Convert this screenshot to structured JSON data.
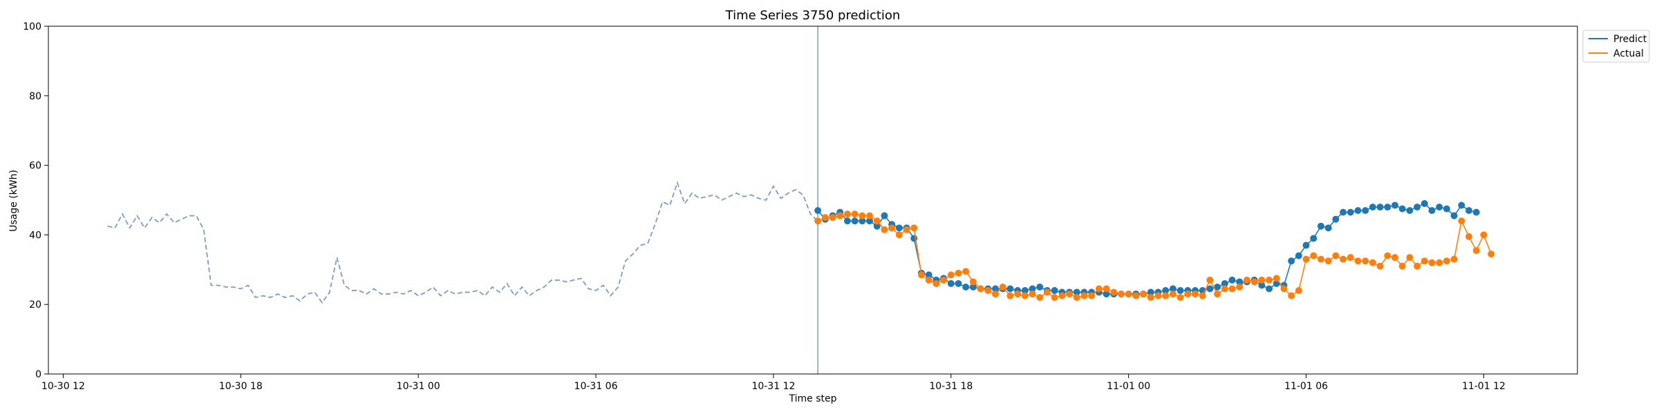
{
  "chart_data": {
    "type": "line",
    "title": "Time Series 3750 prediction",
    "xlabel": "Time step",
    "ylabel": "Usage (kWh)",
    "ylim": [
      0,
      100
    ],
    "xlim": [
      "2023-10-30 11:30",
      "2023-11-01 15:10"
    ],
    "yticks": [
      0,
      20,
      40,
      60,
      80,
      100
    ],
    "xticks": [
      {
        "t": "2023-10-30 12:00",
        "label": "10-30 12"
      },
      {
        "t": "2023-10-30 18:00",
        "label": "10-30 18"
      },
      {
        "t": "2023-10-31 00:00",
        "label": "10-31 00"
      },
      {
        "t": "2023-10-31 06:00",
        "label": "10-31 06"
      },
      {
        "t": "2023-10-31 12:00",
        "label": "10-31 12"
      },
      {
        "t": "2023-10-31 18:00",
        "label": "10-31 18"
      },
      {
        "t": "2023-11-01 00:00",
        "label": "11-01 00"
      },
      {
        "t": "2023-11-01 06:00",
        "label": "11-01 06"
      },
      {
        "t": "2023-11-01 12:00",
        "label": "11-01 12"
      }
    ],
    "legend": {
      "location": "upper-right-outside",
      "entries": [
        "Predict",
        "Actual"
      ]
    },
    "colors": {
      "history": "#7b9bc8",
      "predict": "#1f77b4",
      "actual": "#ff7f0e",
      "divider": "#7b9bc8"
    },
    "divider_x": "2023-10-31 13:30",
    "history": {
      "start": "2023-10-30 13:30",
      "step_minutes": 15,
      "style": "dashed",
      "values": [
        42.5,
        42,
        46,
        42,
        45.5,
        42,
        45,
        43.5,
        46,
        43.5,
        44.5,
        45.5,
        45.5,
        41.5,
        25.5,
        25.5,
        25,
        25,
        24.5,
        25.5,
        22,
        22.5,
        22,
        23,
        22,
        22.5,
        21,
        23,
        23.5,
        20.5,
        23.5,
        33.5,
        25.5,
        24,
        24,
        23,
        24.5,
        23,
        23,
        23.5,
        23,
        24,
        22.5,
        23.5,
        25,
        22.5,
        24,
        23,
        23.5,
        23.5,
        24,
        22.5,
        25,
        23.5,
        26,
        22.5,
        25,
        22.5,
        24,
        25,
        27,
        27,
        26.5,
        27,
        27.5,
        24.5,
        24,
        25.5,
        22.5,
        25,
        32.5,
        34.5,
        37,
        37.5,
        43,
        49.5,
        48.5,
        55,
        49,
        52,
        50.5,
        51,
        51.5,
        50,
        51,
        52,
        51,
        51.5,
        50.5,
        50,
        54,
        50.5,
        52,
        53,
        51.5,
        46,
        44
      ]
    },
    "series": [
      {
        "name": "Predict",
        "start": "2023-10-31 13:30",
        "step_minutes": 15,
        "values": [
          47,
          44.5,
          45.5,
          46.5,
          44,
          44,
          44,
          44,
          42.5,
          45.5,
          43,
          42,
          42,
          39,
          29,
          28.5,
          27,
          27.5,
          26,
          26,
          25,
          25,
          24.5,
          24.5,
          24.5,
          24.5,
          24.5,
          24,
          24,
          24.5,
          25,
          24,
          24,
          23.5,
          23.5,
          23.5,
          23.5,
          23.5,
          23.5,
          23,
          23,
          23,
          23,
          23,
          23,
          23.5,
          23.5,
          24,
          24.5,
          24,
          24,
          24,
          24,
          24.5,
          25,
          26,
          27,
          26.5,
          26.5,
          27,
          25.5,
          24.5,
          26,
          25.5,
          32.5,
          34,
          37,
          39,
          42.5,
          42,
          44.5,
          46.5,
          46.5,
          47,
          47,
          48,
          48,
          48,
          48.5,
          47.5,
          47,
          48,
          49,
          47,
          48,
          47.5,
          45.5,
          48.5,
          47,
          46.5
        ]
      },
      {
        "name": "Actual",
        "start": "2023-10-31 13:30",
        "step_minutes": 15,
        "values": [
          44,
          45,
          45,
          45.5,
          46,
          46,
          45.5,
          45.5,
          44,
          41.5,
          42,
          40,
          41.5,
          42,
          28.5,
          27,
          26,
          27,
          28.5,
          29,
          29.5,
          26.5,
          24.5,
          24,
          23,
          25,
          22.5,
          23,
          22.5,
          23,
          22,
          23.5,
          22,
          22.5,
          23,
          22,
          22.5,
          22.5,
          24.5,
          24.5,
          23.5,
          23,
          23,
          22.5,
          23,
          22,
          22.5,
          22.5,
          23,
          22,
          23,
          23,
          22.5,
          27,
          23,
          24.5,
          24.5,
          25,
          27,
          26.5,
          27,
          27,
          27.5,
          24.5,
          22.5,
          24,
          33,
          34,
          33,
          32.5,
          34,
          33,
          33.5,
          32.5,
          32.5,
          32,
          31,
          34,
          33.5,
          31,
          33.5,
          31,
          32.5,
          32,
          32,
          32.5,
          33,
          44,
          39.5,
          35.5,
          40,
          34.5
        ]
      }
    ]
  }
}
